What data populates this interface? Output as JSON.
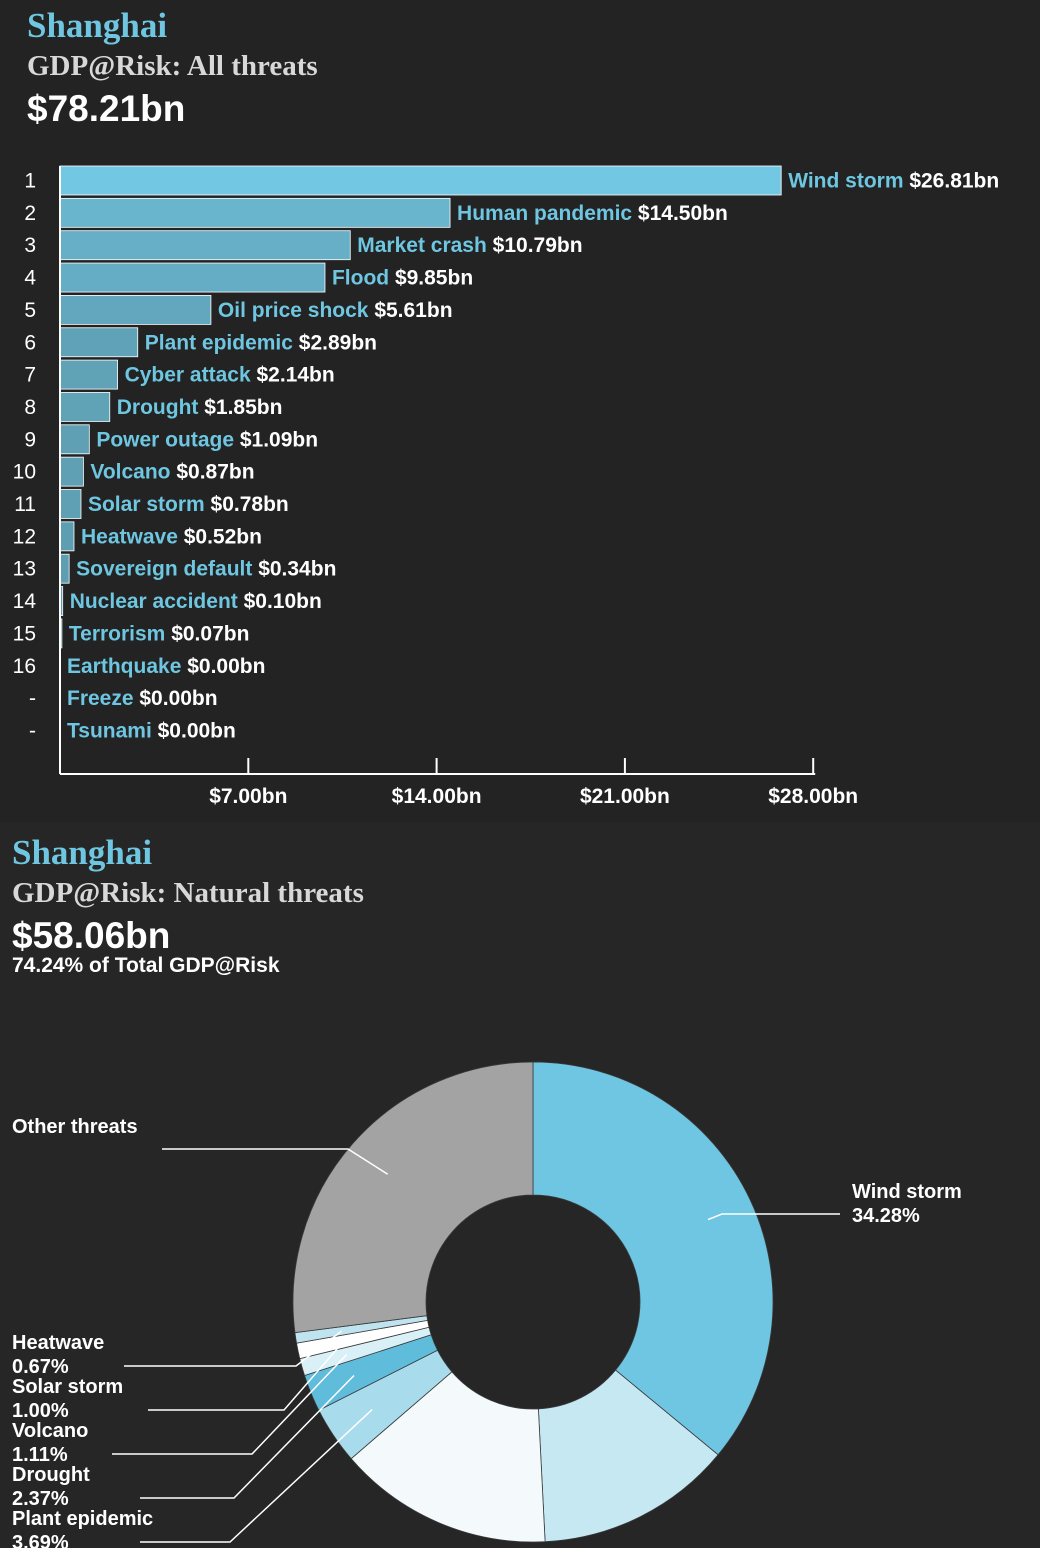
{
  "bar_panel": {
    "city": "Shanghai",
    "subtitle": "GDP@Risk: All threats",
    "total": "$78.21bn"
  },
  "donut_panel": {
    "city": "Shanghai",
    "subtitle": "GDP@Risk: Natural threats",
    "total": "$58.06bn",
    "share_of_total": "74.24% of Total GDP@Risk"
  },
  "colors": {
    "bar": "#72c8e3",
    "label_name": "#6ec6e1",
    "label_value": "#ffffff",
    "axis": "#ffffff",
    "wind_storm": "#6ec6e2",
    "other_threats": "#a3a3a3"
  },
  "chart_data": [
    {
      "type": "bar",
      "orientation": "horizontal",
      "categories": [
        "Wind storm",
        "Human pandemic",
        "Market crash",
        "Flood",
        "Oil price shock",
        "Plant epidemic",
        "Cyber attack",
        "Drought",
        "Power outage",
        "Volcano",
        "Solar storm",
        "Heatwave",
        "Sovereign default",
        "Nuclear accident",
        "Terrorism",
        "Earthquake",
        "Freeze",
        "Tsunami"
      ],
      "ranks": [
        "1",
        "2",
        "3",
        "4",
        "5",
        "6",
        "7",
        "8",
        "9",
        "10",
        "11",
        "12",
        "13",
        "14",
        "15",
        "16",
        "-",
        "-"
      ],
      "values": [
        26.81,
        14.5,
        10.79,
        9.85,
        5.61,
        2.89,
        2.14,
        1.85,
        1.09,
        0.87,
        0.78,
        0.52,
        0.34,
        0.1,
        0.07,
        0.0,
        0.0,
        0.0
      ],
      "value_labels": [
        "$26.81bn",
        "$14.50bn",
        "$10.79bn",
        "$9.85bn",
        "$5.61bn",
        "$2.89bn",
        "$2.14bn",
        "$1.85bn",
        "$1.09bn",
        "$0.87bn",
        "$0.78bn",
        "$0.52bn",
        "$0.34bn",
        "$0.10bn",
        "$0.07bn",
        "$0.00bn",
        "$0.00bn",
        "$0.00bn"
      ],
      "xticks": [
        7,
        14,
        21,
        28
      ],
      "xtick_labels": [
        "$7.00bn",
        "$14.00bn",
        "$21.00bn",
        "$28.00bn"
      ],
      "xlim": [
        0,
        28
      ],
      "grid": false
    },
    {
      "type": "pie",
      "donut": true,
      "segments": [
        {
          "name": "Wind storm",
          "value": 34.28,
          "label": "34.28%",
          "color": "#6ec6e2",
          "labeled": true
        },
        {
          "name": "Flood",
          "value": 12.59,
          "color": "#c6e8f2",
          "labeled": false
        },
        {
          "name": "Market crash",
          "value": 13.8,
          "color": "#f4fafc",
          "labeled": false
        },
        {
          "name": "Plant epidemic",
          "value": 3.69,
          "label": "3.69%",
          "color": "#a8dcec",
          "labeled": true
        },
        {
          "name": "Drought",
          "value": 2.37,
          "label": "2.37%",
          "color": "#5fbcdb",
          "labeled": true
        },
        {
          "name": "Volcano",
          "value": 1.11,
          "label": "1.11%",
          "color": "#d9f0f7",
          "labeled": true
        },
        {
          "name": "Solar storm",
          "value": 1.0,
          "label": "1.00%",
          "color": "#ffffff",
          "labeled": true
        },
        {
          "name": "Heatwave",
          "value": 0.67,
          "label": "0.67%",
          "color": "#bfe4f0",
          "labeled": true
        },
        {
          "name": "Other threats",
          "value": 25.76,
          "color": "#a3a3a3",
          "labeled": true,
          "label": ""
        }
      ]
    }
  ]
}
